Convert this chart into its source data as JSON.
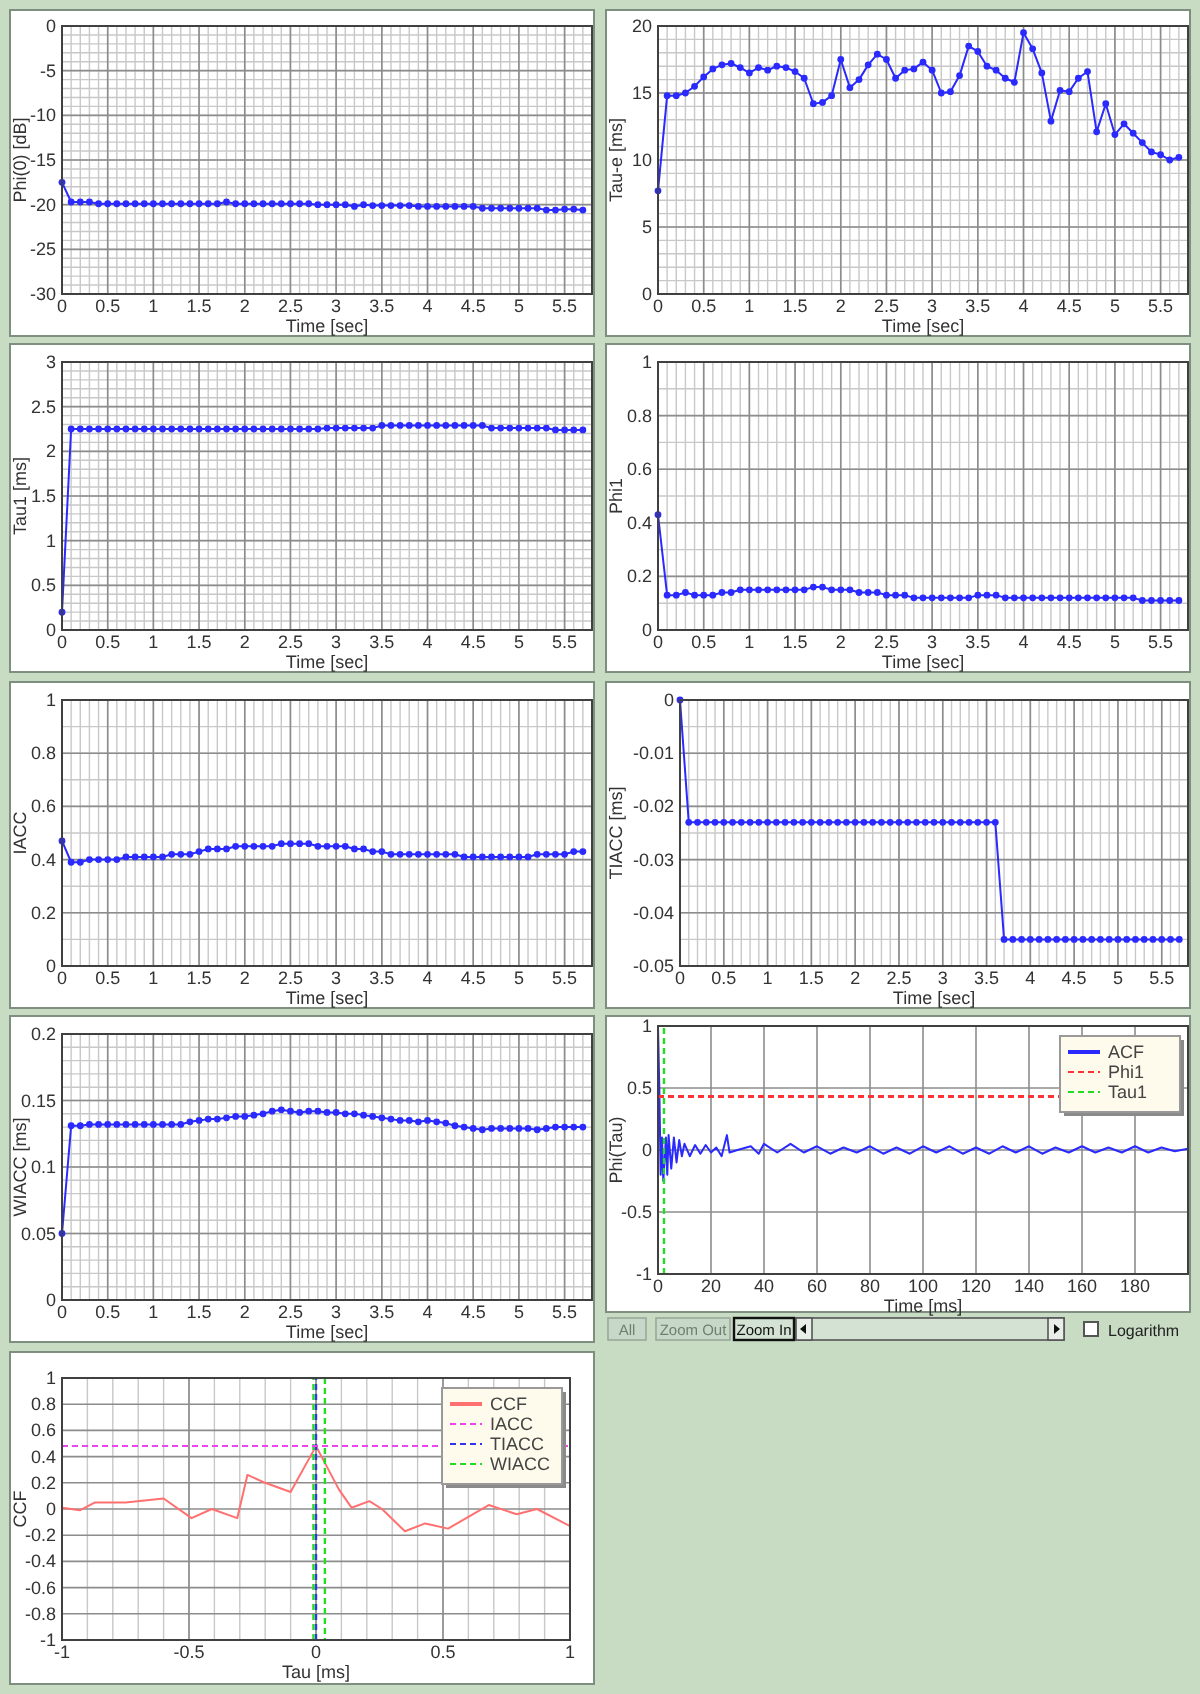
{
  "chart_data": [
    {
      "type": "line",
      "xlabel": "Time [sec]",
      "ylabel": "Phi(0) [dB]",
      "x": [
        0,
        0.1,
        0.2,
        0.3,
        0.4,
        0.5,
        0.6,
        0.7,
        0.8,
        0.9,
        1,
        1.1,
        1.2,
        1.3,
        1.4,
        1.5,
        1.6,
        1.7,
        1.8,
        1.9,
        2,
        2.1,
        2.2,
        2.3,
        2.4,
        2.5,
        2.6,
        2.7,
        2.8,
        2.9,
        3,
        3.1,
        3.2,
        3.3,
        3.4,
        3.5,
        3.6,
        3.7,
        3.8,
        3.9,
        4,
        4.1,
        4.2,
        4.3,
        4.4,
        4.5,
        4.6,
        4.7,
        4.8,
        4.9,
        5,
        5.1,
        5.2,
        5.3,
        5.4,
        5.5,
        5.6,
        5.7
      ],
      "xlim": [
        0,
        5.8
      ],
      "xticks": [
        0,
        0.5,
        1,
        1.5,
        2,
        2.5,
        3,
        3.5,
        4,
        4.5,
        5,
        5.5
      ],
      "ylim": [
        -30,
        0
      ],
      "yticks": [
        -30,
        -25,
        -20,
        -15,
        -10,
        -5,
        0
      ],
      "grid": true,
      "marker": "circle",
      "series": [
        {
          "color": "#2a2aff",
          "values": [
            -17.5,
            -19.7,
            -19.7,
            -19.7,
            -19.9,
            -19.9,
            -19.9,
            -19.9,
            -19.9,
            -19.9,
            -19.9,
            -19.9,
            -19.9,
            -19.9,
            -19.9,
            -19.9,
            -19.9,
            -19.9,
            -19.7,
            -19.9,
            -19.9,
            -19.9,
            -19.9,
            -19.9,
            -19.9,
            -19.9,
            -19.9,
            -19.9,
            -20,
            -20,
            -20,
            -20,
            -20.2,
            -20,
            -20.1,
            -20.1,
            -20.1,
            -20.1,
            -20.1,
            -20.2,
            -20.2,
            -20.2,
            -20.2,
            -20.2,
            -20.2,
            -20.2,
            -20.4,
            -20.4,
            -20.4,
            -20.4,
            -20.4,
            -20.4,
            -20.4,
            -20.6,
            -20.6,
            -20.5,
            -20.5,
            -20.6
          ]
        }
      ]
    },
    {
      "type": "line",
      "xlabel": "Time [sec]",
      "ylabel": "Tau-e [ms]",
      "x": [
        0,
        0.1,
        0.2,
        0.3,
        0.4,
        0.5,
        0.6,
        0.7,
        0.8,
        0.9,
        1,
        1.1,
        1.2,
        1.3,
        1.4,
        1.5,
        1.6,
        1.7,
        1.8,
        1.9,
        2,
        2.1,
        2.2,
        2.3,
        2.4,
        2.5,
        2.6,
        2.7,
        2.8,
        2.9,
        3,
        3.1,
        3.2,
        3.3,
        3.4,
        3.5,
        3.6,
        3.7,
        3.8,
        3.9,
        4,
        4.1,
        4.2,
        4.3,
        4.4,
        4.5,
        4.6,
        4.7,
        4.8,
        4.9,
        5,
        5.1,
        5.2,
        5.3,
        5.4,
        5.5,
        5.6,
        5.7
      ],
      "xlim": [
        0,
        5.8
      ],
      "xticks": [
        0,
        0.5,
        1,
        1.5,
        2,
        2.5,
        3,
        3.5,
        4,
        4.5,
        5,
        5.5
      ],
      "ylim": [
        0,
        20
      ],
      "yticks": [
        0,
        5,
        10,
        15,
        20
      ],
      "grid": true,
      "marker": "circle",
      "series": [
        {
          "color": "#2a2aff",
          "values": [
            7.7,
            14.8,
            14.8,
            15,
            15.5,
            16.2,
            16.8,
            17.1,
            17.2,
            16.9,
            16.5,
            16.9,
            16.7,
            17,
            16.9,
            16.6,
            16.1,
            14.2,
            14.3,
            14.8,
            17.5,
            15.4,
            16,
            17.1,
            17.9,
            17.5,
            16.1,
            16.7,
            16.8,
            17.3,
            16.7,
            15,
            15.1,
            16.3,
            18.5,
            18.1,
            17,
            16.7,
            16.1,
            15.8,
            19.5,
            18.3,
            16.5,
            12.9,
            15.2,
            15.1,
            16.1,
            16.6,
            12.1,
            14.2,
            11.9,
            12.7,
            12,
            11.3,
            10.6,
            10.4,
            10,
            10.2
          ]
        }
      ]
    },
    {
      "type": "line",
      "xlabel": "Time [sec]",
      "ylabel": "Tau1 [ms]",
      "x": [
        0,
        0.1,
        0.2,
        0.3,
        0.4,
        0.5,
        0.6,
        0.7,
        0.8,
        0.9,
        1,
        1.1,
        1.2,
        1.3,
        1.4,
        1.5,
        1.6,
        1.7,
        1.8,
        1.9,
        2,
        2.1,
        2.2,
        2.3,
        2.4,
        2.5,
        2.6,
        2.7,
        2.8,
        2.9,
        3,
        3.1,
        3.2,
        3.3,
        3.4,
        3.5,
        3.6,
        3.7,
        3.8,
        3.9,
        4,
        4.1,
        4.2,
        4.3,
        4.4,
        4.5,
        4.6,
        4.7,
        4.8,
        4.9,
        5,
        5.1,
        5.2,
        5.3,
        5.4,
        5.5,
        5.6,
        5.7
      ],
      "xlim": [
        0,
        5.8
      ],
      "xticks": [
        0,
        0.5,
        1,
        1.5,
        2,
        2.5,
        3,
        3.5,
        4,
        4.5,
        5,
        5.5
      ],
      "ylim": [
        0,
        3
      ],
      "yticks": [
        0,
        0.5,
        1,
        1.5,
        2,
        2.5,
        3
      ],
      "grid": true,
      "marker": "circle",
      "series": [
        {
          "color": "#2a2aff",
          "values": [
            0.2,
            2.25,
            2.25,
            2.25,
            2.25,
            2.25,
            2.25,
            2.25,
            2.25,
            2.25,
            2.25,
            2.25,
            2.25,
            2.25,
            2.25,
            2.25,
            2.25,
            2.25,
            2.25,
            2.25,
            2.25,
            2.25,
            2.25,
            2.25,
            2.25,
            2.25,
            2.25,
            2.25,
            2.25,
            2.26,
            2.26,
            2.26,
            2.26,
            2.26,
            2.26,
            2.29,
            2.29,
            2.29,
            2.29,
            2.29,
            2.29,
            2.29,
            2.29,
            2.29,
            2.29,
            2.29,
            2.29,
            2.26,
            2.26,
            2.26,
            2.26,
            2.26,
            2.26,
            2.26,
            2.24,
            2.24,
            2.24,
            2.24
          ]
        }
      ]
    },
    {
      "type": "line",
      "xlabel": "Time [sec]",
      "ylabel": "Phi1",
      "x": [
        0,
        0.1,
        0.2,
        0.3,
        0.4,
        0.5,
        0.6,
        0.7,
        0.8,
        0.9,
        1,
        1.1,
        1.2,
        1.3,
        1.4,
        1.5,
        1.6,
        1.7,
        1.8,
        1.9,
        2,
        2.1,
        2.2,
        2.3,
        2.4,
        2.5,
        2.6,
        2.7,
        2.8,
        2.9,
        3,
        3.1,
        3.2,
        3.3,
        3.4,
        3.5,
        3.6,
        3.7,
        3.8,
        3.9,
        4,
        4.1,
        4.2,
        4.3,
        4.4,
        4.5,
        4.6,
        4.7,
        4.8,
        4.9,
        5,
        5.1,
        5.2,
        5.3,
        5.4,
        5.5,
        5.6,
        5.7
      ],
      "xlim": [
        0,
        5.8
      ],
      "xticks": [
        0,
        0.5,
        1,
        1.5,
        2,
        2.5,
        3,
        3.5,
        4,
        4.5,
        5,
        5.5
      ],
      "ylim": [
        0,
        1
      ],
      "yticks": [
        0,
        0.2,
        0.4,
        0.6,
        0.8,
        1
      ],
      "grid": true,
      "marker": "circle",
      "series": [
        {
          "color": "#2a2aff",
          "values": [
            0.43,
            0.13,
            0.13,
            0.14,
            0.13,
            0.13,
            0.13,
            0.14,
            0.14,
            0.15,
            0.15,
            0.15,
            0.15,
            0.15,
            0.15,
            0.15,
            0.15,
            0.16,
            0.16,
            0.15,
            0.15,
            0.15,
            0.14,
            0.14,
            0.14,
            0.13,
            0.13,
            0.13,
            0.12,
            0.12,
            0.12,
            0.12,
            0.12,
            0.12,
            0.12,
            0.13,
            0.13,
            0.13,
            0.12,
            0.12,
            0.12,
            0.12,
            0.12,
            0.12,
            0.12,
            0.12,
            0.12,
            0.12,
            0.12,
            0.12,
            0.12,
            0.12,
            0.12,
            0.11,
            0.11,
            0.11,
            0.11,
            0.11
          ]
        }
      ]
    },
    {
      "type": "line",
      "xlabel": "Time [sec]",
      "ylabel": "IACC",
      "x": [
        0,
        0.1,
        0.2,
        0.3,
        0.4,
        0.5,
        0.6,
        0.7,
        0.8,
        0.9,
        1,
        1.1,
        1.2,
        1.3,
        1.4,
        1.5,
        1.6,
        1.7,
        1.8,
        1.9,
        2,
        2.1,
        2.2,
        2.3,
        2.4,
        2.5,
        2.6,
        2.7,
        2.8,
        2.9,
        3,
        3.1,
        3.2,
        3.3,
        3.4,
        3.5,
        3.6,
        3.7,
        3.8,
        3.9,
        4,
        4.1,
        4.2,
        4.3,
        4.4,
        4.5,
        4.6,
        4.7,
        4.8,
        4.9,
        5,
        5.1,
        5.2,
        5.3,
        5.4,
        5.5,
        5.6,
        5.7
      ],
      "xlim": [
        0,
        5.8
      ],
      "xticks": [
        0,
        0.5,
        1,
        1.5,
        2,
        2.5,
        3,
        3.5,
        4,
        4.5,
        5,
        5.5
      ],
      "ylim": [
        0,
        1
      ],
      "yticks": [
        0,
        0.2,
        0.4,
        0.6,
        0.8,
        1
      ],
      "grid": true,
      "marker": "circle",
      "series": [
        {
          "color": "#2a2aff",
          "values": [
            0.47,
            0.39,
            0.39,
            0.4,
            0.4,
            0.4,
            0.4,
            0.41,
            0.41,
            0.41,
            0.41,
            0.41,
            0.42,
            0.42,
            0.42,
            0.43,
            0.44,
            0.44,
            0.44,
            0.45,
            0.45,
            0.45,
            0.45,
            0.45,
            0.46,
            0.46,
            0.46,
            0.46,
            0.45,
            0.45,
            0.45,
            0.45,
            0.44,
            0.44,
            0.43,
            0.43,
            0.42,
            0.42,
            0.42,
            0.42,
            0.42,
            0.42,
            0.42,
            0.42,
            0.41,
            0.41,
            0.41,
            0.41,
            0.41,
            0.41,
            0.41,
            0.41,
            0.42,
            0.42,
            0.42,
            0.42,
            0.43,
            0.43
          ]
        }
      ]
    },
    {
      "type": "line",
      "xlabel": "Time [sec]",
      "ylabel": "TIACC [ms]",
      "x": [
        0,
        0.1,
        0.2,
        0.3,
        0.4,
        0.5,
        0.6,
        0.7,
        0.8,
        0.9,
        1,
        1.1,
        1.2,
        1.3,
        1.4,
        1.5,
        1.6,
        1.7,
        1.8,
        1.9,
        2,
        2.1,
        2.2,
        2.3,
        2.4,
        2.5,
        2.6,
        2.7,
        2.8,
        2.9,
        3,
        3.1,
        3.2,
        3.3,
        3.4,
        3.5,
        3.6,
        3.7,
        3.8,
        3.9,
        4,
        4.1,
        4.2,
        4.3,
        4.4,
        4.5,
        4.6,
        4.7,
        4.8,
        4.9,
        5,
        5.1,
        5.2,
        5.3,
        5.4,
        5.5,
        5.6,
        5.7
      ],
      "xlim": [
        0,
        5.8
      ],
      "xticks": [
        0,
        0.5,
        1,
        1.5,
        2,
        2.5,
        3,
        3.5,
        4,
        4.5,
        5,
        5.5
      ],
      "ylim": [
        -0.05,
        0
      ],
      "yticks": [
        -0.05,
        -0.04,
        -0.03,
        -0.02,
        -0.01,
        0
      ],
      "grid": true,
      "marker": "circle",
      "series": [
        {
          "color": "#2a2aff",
          "values": [
            0,
            -0.023,
            -0.023,
            -0.023,
            -0.023,
            -0.023,
            -0.023,
            -0.023,
            -0.023,
            -0.023,
            -0.023,
            -0.023,
            -0.023,
            -0.023,
            -0.023,
            -0.023,
            -0.023,
            -0.023,
            -0.023,
            -0.023,
            -0.023,
            -0.023,
            -0.023,
            -0.023,
            -0.023,
            -0.023,
            -0.023,
            -0.023,
            -0.023,
            -0.023,
            -0.023,
            -0.023,
            -0.023,
            -0.023,
            -0.023,
            -0.023,
            -0.023,
            -0.045,
            -0.045,
            -0.045,
            -0.045,
            -0.045,
            -0.045,
            -0.045,
            -0.045,
            -0.045,
            -0.045,
            -0.045,
            -0.045,
            -0.045,
            -0.045,
            -0.045,
            -0.045,
            -0.045,
            -0.045,
            -0.045,
            -0.045,
            -0.045
          ]
        }
      ]
    },
    {
      "type": "line",
      "xlabel": "Time [sec]",
      "ylabel": "WIACC [ms]",
      "x": [
        0,
        0.1,
        0.2,
        0.3,
        0.4,
        0.5,
        0.6,
        0.7,
        0.8,
        0.9,
        1,
        1.1,
        1.2,
        1.3,
        1.4,
        1.5,
        1.6,
        1.7,
        1.8,
        1.9,
        2,
        2.1,
        2.2,
        2.3,
        2.4,
        2.5,
        2.6,
        2.7,
        2.8,
        2.9,
        3,
        3.1,
        3.2,
        3.3,
        3.4,
        3.5,
        3.6,
        3.7,
        3.8,
        3.9,
        4,
        4.1,
        4.2,
        4.3,
        4.4,
        4.5,
        4.6,
        4.7,
        4.8,
        4.9,
        5,
        5.1,
        5.2,
        5.3,
        5.4,
        5.5,
        5.6,
        5.7
      ],
      "xlim": [
        0,
        5.8
      ],
      "xticks": [
        0,
        0.5,
        1,
        1.5,
        2,
        2.5,
        3,
        3.5,
        4,
        4.5,
        5,
        5.5
      ],
      "ylim": [
        0,
        0.2
      ],
      "yticks": [
        0,
        0.05,
        0.1,
        0.15,
        0.2
      ],
      "grid": true,
      "marker": "circle",
      "series": [
        {
          "color": "#2a2aff",
          "values": [
            0.05,
            0.131,
            0.131,
            0.132,
            0.132,
            0.132,
            0.132,
            0.132,
            0.132,
            0.132,
            0.132,
            0.132,
            0.132,
            0.132,
            0.134,
            0.135,
            0.136,
            0.136,
            0.137,
            0.138,
            0.138,
            0.139,
            0.14,
            0.142,
            0.143,
            0.142,
            0.141,
            0.142,
            0.142,
            0.141,
            0.141,
            0.14,
            0.14,
            0.139,
            0.138,
            0.137,
            0.136,
            0.135,
            0.135,
            0.134,
            0.135,
            0.134,
            0.133,
            0.131,
            0.13,
            0.129,
            0.128,
            0.129,
            0.129,
            0.129,
            0.129,
            0.129,
            0.128,
            0.129,
            0.13,
            0.13,
            0.13,
            0.13
          ]
        }
      ]
    },
    {
      "type": "line",
      "xlabel": "Time [ms]",
      "ylabel": "Phi(Tau)",
      "xlim": [
        0,
        200
      ],
      "xticks": [
        0,
        20,
        40,
        60,
        80,
        100,
        120,
        140,
        160,
        180
      ],
      "ylim": [
        -1,
        1
      ],
      "yticks": [
        -1,
        -0.5,
        0,
        0.5,
        1
      ],
      "grid": true,
      "legend": "top right",
      "x": [
        0,
        0.5,
        1,
        1.5,
        2,
        3,
        3.5,
        4,
        5,
        6,
        7,
        8,
        9,
        10,
        12,
        14,
        16,
        18,
        20,
        22,
        24,
        26,
        27,
        30,
        35,
        38,
        40,
        45,
        50,
        55,
        60,
        65,
        70,
        75,
        80,
        85,
        90,
        95,
        100,
        105,
        110,
        115,
        120,
        125,
        130,
        135,
        140,
        145,
        150,
        155,
        160,
        165,
        170,
        175,
        180,
        185,
        190,
        195,
        200
      ],
      "series": [
        {
          "name": "ACF",
          "color": "#2a2aff",
          "values": [
            1,
            0.5,
            -0.2,
            0.1,
            -0.25,
            0.1,
            -0.2,
            0.12,
            -0.15,
            0.1,
            -0.1,
            0.08,
            -0.05,
            0.05,
            -0.05,
            0.04,
            -0.03,
            0.04,
            -0.02,
            0.02,
            -0.05,
            0.12,
            -0.02,
            0,
            0.03,
            -0.03,
            0.05,
            -0.02,
            0.05,
            -0.02,
            0.03,
            -0.03,
            0.02,
            -0.02,
            0.03,
            -0.03,
            0.02,
            -0.03,
            0.03,
            -0.02,
            0.03,
            -0.03,
            0.02,
            -0.03,
            0.03,
            -0.02,
            0.03,
            -0.03,
            0.02,
            -0.02,
            0.03,
            -0.02,
            0.02,
            -0.02,
            0.03,
            -0.02,
            0.02,
            -0.01,
            0.01
          ]
        },
        {
          "name": "Tau1",
          "type": "line",
          "color": "#22dd22",
          "line_style": "dashed",
          "x": [
            2.25,
            2.25
          ],
          "values": [
            -1,
            1
          ]
        }
      ],
      "ref_lines": [
        {
          "axis": "y",
          "value": 0.43,
          "label": "Phi1",
          "color": "#ff3333",
          "line_style": "dashed"
        }
      ]
    },
    {
      "type": "other",
      "annotations": [
        "All",
        "Zoom Out",
        "Zoom In",
        "Logarithm"
      ]
    },
    {
      "type": "line",
      "xlabel": "Tau [ms]",
      "ylabel": "CCF",
      "xlim": [
        -1,
        1
      ],
      "xticks": [
        -1,
        -0.5,
        0,
        0.5,
        1
      ],
      "ylim": [
        -1,
        1
      ],
      "yticks": [
        -1,
        -0.8,
        -0.6,
        -0.4,
        -0.2,
        0,
        0.2,
        0.4,
        0.6,
        0.8,
        1
      ],
      "grid": true,
      "legend": "top right",
      "x": [
        -1,
        -0.93,
        -0.87,
        -0.75,
        -0.6,
        -0.49,
        -0.41,
        -0.31,
        -0.27,
        -0.2,
        -0.1,
        0,
        0.09,
        0.14,
        0.21,
        0.26,
        0.35,
        0.43,
        0.52,
        0.6,
        0.68,
        0.79,
        0.87,
        1
      ],
      "series": [
        {
          "name": "CCF",
          "color": "#ff7070",
          "values": [
            0.01,
            -0.01,
            0.05,
            0.05,
            0.08,
            -0.07,
            0,
            -0.07,
            0.26,
            0.2,
            0.13,
            0.48,
            0.15,
            0.01,
            0.06,
            0,
            -0.17,
            -0.11,
            -0.15,
            -0.06,
            0.03,
            -0.04,
            0,
            -0.13
          ]
        },
        {
          "name": "TIACC",
          "type": "line",
          "color": "#3333ee",
          "line_style": "dashed",
          "x": [
            0,
            0
          ],
          "values": [
            -1,
            1
          ]
        },
        {
          "name": "WIACC",
          "type": "line",
          "color": "#22dd22",
          "line_style": "dashed",
          "x": [
            -0.01,
            -0.01,
            0.01,
            0.035,
            0.035
          ],
          "values": [
            -1,
            1,
            null,
            1,
            -1
          ]
        }
      ],
      "ref_lines": [
        {
          "axis": "y",
          "value": 0.48,
          "label": "IACC",
          "color": "#ee44ee",
          "line_style": "dashed"
        }
      ]
    }
  ]
}
